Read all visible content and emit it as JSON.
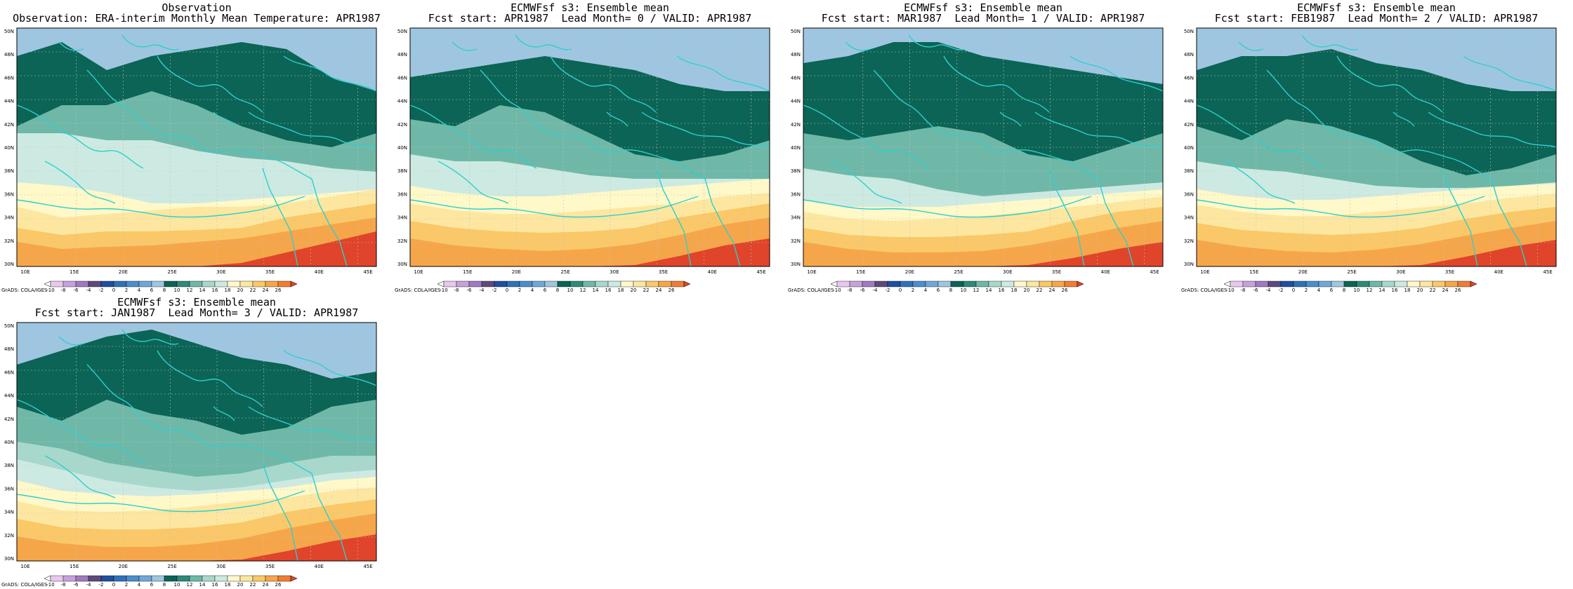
{
  "panels": [
    {
      "title_line1": "Observation",
      "title_line2": "Observation: ERA-interim Monthly Mean Temperature: APR1987",
      "variant": 0
    },
    {
      "title_line1": "ECMWFsf s3: Ensemble mean",
      "title_line2": "Fcst start: APR1987  Lead Month= 0 / VALID: APR1987",
      "variant": 1
    },
    {
      "title_line1": "ECMWFsf s3: Ensemble mean",
      "title_line2": "Fcst start: MAR1987  Lead Month= 1 / VALID: APR1987",
      "variant": 2
    },
    {
      "title_line1": "ECMWFsf s3: Ensemble mean",
      "title_line2": "Fcst start: FEB1987  Lead Month= 2 / VALID: APR1987",
      "variant": 3
    },
    {
      "title_line1": "ECMWFsf s3: Ensemble mean",
      "title_line2": "Fcst start: JAN1987  Lead Month= 3 / VALID: APR1987",
      "variant": 4
    }
  ],
  "lat_labels": [
    "50N",
    "48N",
    "46N",
    "44N",
    "42N",
    "40N",
    "38N",
    "36N",
    "34N",
    "32N",
    "30N"
  ],
  "lon_labels": [
    "10E",
    "15E",
    "20E",
    "25E",
    "30E",
    "35E",
    "40E",
    "45E"
  ],
  "colorbar": {
    "credit": "GrADS: COLA/IGES",
    "labels": [
      "-10",
      "-8",
      "-6",
      "-4",
      "-2",
      "0",
      "2",
      "4",
      "6",
      "8",
      "10",
      "12",
      "14",
      "16",
      "18",
      "20",
      "22",
      "24",
      "26"
    ],
    "colors": [
      "#ffffff",
      "#e8c8ee",
      "#c9a0dc",
      "#a07ac0",
      "#5c4a7e",
      "#1f4fa0",
      "#2f72b8",
      "#4a8fcc",
      "#6fa8d8",
      "#9fc6e0",
      "#0b6455",
      "#2f8a78",
      "#6fb8a8",
      "#a8d8cc",
      "#cdeae2",
      "#fff8c8",
      "#fde7a0",
      "#fac868",
      "#f6a64a",
      "#f07d34",
      "#e0442a"
    ]
  },
  "legend_colors": {
    "lv4": "#6fa8d8",
    "lv6": "#9fc6e0",
    "lv8": "#0b6455",
    "lv10": "#2f8a78",
    "lv12": "#6fb8a8",
    "lv14": "#a8d8cc",
    "lv16": "#cdeae2",
    "lv18": "#fff8c8",
    "lv20": "#fde7a0",
    "lv22": "#fac868",
    "lv24": "#f6a64a",
    "lv26": "#e0442a",
    "coast": "#2ecfcf",
    "grid": "#bfbfbf"
  }
}
